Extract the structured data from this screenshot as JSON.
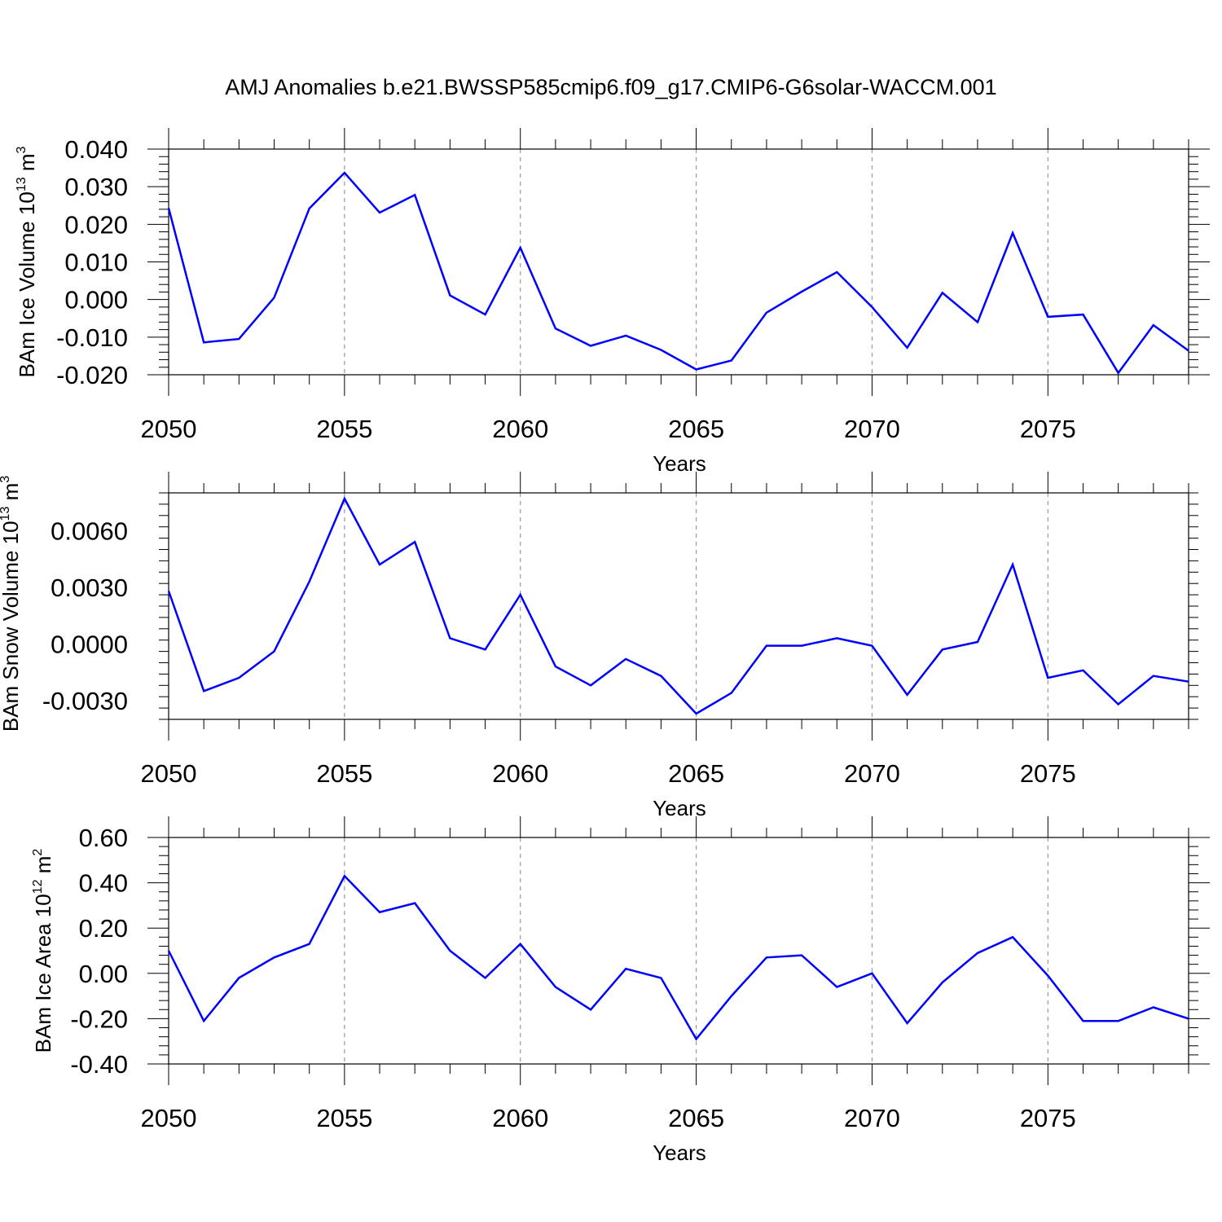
{
  "title": "AMJ Anomalies b.e21.BWSSP585cmip6.f09_g17.CMIP6-G6solar-WACCM.001",
  "colors": {
    "line": "#0000ff",
    "axis": "#000000",
    "grid": "#9a9a9a"
  },
  "chart_data": [
    {
      "type": "line",
      "xlabel": "Years",
      "ylabel_main": "BAm Ice Volume 10",
      "ylabel_exp": "13",
      "ylabel_unit": "m",
      "ylabel_unit_exp": "3",
      "xlim": [
        2050,
        2079
      ],
      "ylim": [
        -0.02,
        0.04
      ],
      "xticks": [
        2050,
        2055,
        2060,
        2065,
        2070,
        2075
      ],
      "xtick_labels": [
        "2050",
        "2055",
        "2060",
        "2065",
        "2070",
        "2075"
      ],
      "yticks": [
        -0.02,
        -0.01,
        0.0,
        0.01,
        0.02,
        0.03,
        0.04
      ],
      "ytick_labels": [
        "-0.020",
        "-0.010",
        "0.000",
        "0.010",
        "0.020",
        "0.030",
        "0.040"
      ],
      "grid": "vertical dashed at major x ticks",
      "x": [
        2050,
        2051,
        2052,
        2053,
        2054,
        2055,
        2056,
        2057,
        2058,
        2059,
        2060,
        2061,
        2062,
        2063,
        2064,
        2065,
        2066,
        2067,
        2068,
        2069,
        2070,
        2071,
        2072,
        2073,
        2074,
        2075,
        2076,
        2077,
        2078,
        2079
      ],
      "values": [
        0.0243,
        -0.0114,
        -0.0105,
        0.0005,
        0.0242,
        0.0337,
        0.0231,
        0.0278,
        0.0011,
        -0.004,
        0.0138,
        -0.0077,
        -0.0123,
        -0.0096,
        -0.0134,
        -0.0186,
        -0.0162,
        -0.0035,
        0.0021,
        0.0073,
        -0.002,
        -0.0128,
        0.0018,
        -0.006,
        0.0177,
        -0.0046,
        -0.004,
        -0.0195,
        -0.0068,
        -0.0136
      ]
    },
    {
      "type": "line",
      "xlabel": "Years",
      "ylabel_main": "BAm Snow Volume 10",
      "ylabel_exp": "13",
      "ylabel_unit": "m",
      "ylabel_unit_exp": "3",
      "xlim": [
        2050,
        2079
      ],
      "ylim": [
        -0.004,
        0.008
      ],
      "xticks": [
        2050,
        2055,
        2060,
        2065,
        2070,
        2075
      ],
      "xtick_labels": [
        "2050",
        "2055",
        "2060",
        "2065",
        "2070",
        "2075"
      ],
      "yticks": [
        -0.003,
        0.0,
        0.003,
        0.006
      ],
      "ytick_labels": [
        "-0.0030",
        "0.0000",
        "0.0030",
        "0.0060"
      ],
      "grid": "vertical dashed at major x ticks",
      "x": [
        2050,
        2051,
        2052,
        2053,
        2054,
        2055,
        2056,
        2057,
        2058,
        2059,
        2060,
        2061,
        2062,
        2063,
        2064,
        2065,
        2066,
        2067,
        2068,
        2069,
        2070,
        2071,
        2072,
        2073,
        2074,
        2075,
        2076,
        2077,
        2078,
        2079
      ],
      "values": [
        0.0028,
        -0.0025,
        -0.0018,
        -0.0004,
        0.0033,
        0.0077,
        0.0042,
        0.0054,
        0.0003,
        -0.0003,
        0.0026,
        -0.0012,
        -0.0022,
        -0.0008,
        -0.0017,
        -0.0037,
        -0.0026,
        -0.0001,
        -0.0001,
        0.0003,
        -0.0001,
        -0.0027,
        -0.0003,
        0.0001,
        0.0042,
        -0.0018,
        -0.0014,
        -0.0032,
        -0.0017,
        -0.002
      ]
    },
    {
      "type": "line",
      "xlabel": "Years",
      "ylabel_main": "BAm Ice Area 10",
      "ylabel_exp": "12",
      "ylabel_unit": "m",
      "ylabel_unit_exp": "2",
      "xlim": [
        2050,
        2079
      ],
      "ylim": [
        -0.4,
        0.6
      ],
      "xticks": [
        2050,
        2055,
        2060,
        2065,
        2070,
        2075
      ],
      "xtick_labels": [
        "2050",
        "2055",
        "2060",
        "2065",
        "2070",
        "2075"
      ],
      "yticks": [
        -0.4,
        -0.2,
        0.0,
        0.2,
        0.4,
        0.6
      ],
      "ytick_labels": [
        "-0.40",
        "-0.20",
        "0.00",
        "0.20",
        "0.40",
        "0.60"
      ],
      "grid": "vertical dashed at major x ticks",
      "x": [
        2050,
        2051,
        2052,
        2053,
        2054,
        2055,
        2056,
        2057,
        2058,
        2059,
        2060,
        2061,
        2062,
        2063,
        2064,
        2065,
        2066,
        2067,
        2068,
        2069,
        2070,
        2071,
        2072,
        2073,
        2074,
        2075,
        2076,
        2077,
        2078,
        2079
      ],
      "values": [
        0.1,
        -0.21,
        -0.02,
        0.07,
        0.13,
        0.43,
        0.27,
        0.31,
        0.1,
        -0.02,
        0.13,
        -0.06,
        -0.16,
        0.02,
        -0.02,
        -0.29,
        -0.1,
        0.07,
        0.08,
        -0.06,
        0.0,
        -0.22,
        -0.04,
        0.09,
        0.16,
        -0.01,
        -0.21,
        -0.21,
        -0.15,
        -0.2
      ]
    }
  ]
}
